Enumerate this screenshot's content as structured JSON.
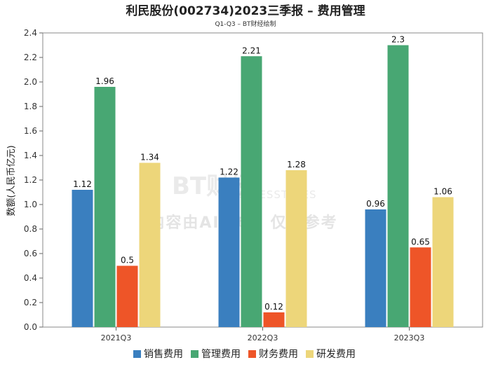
{
  "chart_data": {
    "type": "bar",
    "title": "利民股份(002734)2023三季报 – 费用管理",
    "subtitle": "Q1-Q3 – BT财经绘制",
    "ylabel": "数额(人民币亿元)",
    "xlabel": "",
    "ylim": [
      0,
      2.4
    ],
    "yticks": [
      "0.0",
      "0.2",
      "0.4",
      "0.6",
      "0.8",
      "1.0",
      "1.2",
      "1.4",
      "1.6",
      "1.8",
      "2.0",
      "2.2",
      "2.4"
    ],
    "categories": [
      "2021Q3",
      "2022Q3",
      "2023Q3"
    ],
    "series": [
      {
        "name": "销售费用",
        "color": "#3a7fbf",
        "values": [
          1.12,
          1.22,
          0.96
        ],
        "labels": [
          "1.12",
          "1.22",
          "0.96"
        ]
      },
      {
        "name": "管理费用",
        "color": "#48a773",
        "values": [
          1.96,
          2.21,
          2.3
        ],
        "labels": [
          "1.96",
          "2.21",
          "2.3"
        ]
      },
      {
        "name": "财务费用",
        "color": "#ee5528",
        "values": [
          0.5,
          0.12,
          0.65
        ],
        "labels": [
          "0.5",
          "0.12",
          "0.65"
        ]
      },
      {
        "name": "研发费用",
        "color": "#edd67a",
        "values": [
          1.34,
          1.28,
          1.06
        ],
        "labels": [
          "1.34",
          "1.28",
          "1.06"
        ]
      }
    ],
    "grid": false,
    "legend_position": "bottom"
  },
  "watermark": {
    "brand": "BT财经",
    "sub": "BUSINESSTIMES",
    "note": "内容由AI生成，仅供参考"
  }
}
